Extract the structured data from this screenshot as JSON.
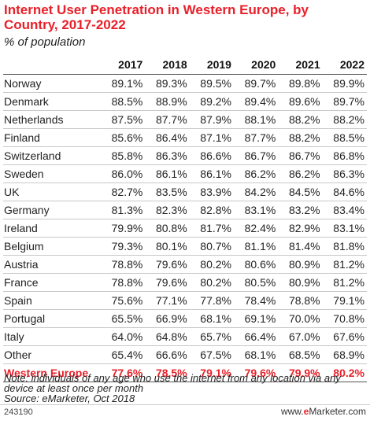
{
  "chart_data": {
    "type": "table",
    "title": "Internet User Penetration in Western Europe, by Country, 2017-2022",
    "subtitle": "% of population",
    "columns": [
      "2017",
      "2018",
      "2019",
      "2020",
      "2021",
      "2022"
    ],
    "rows": [
      {
        "name": "Norway",
        "values": [
          "89.1%",
          "89.3%",
          "89.5%",
          "89.7%",
          "89.8%",
          "89.9%"
        ]
      },
      {
        "name": "Denmark",
        "values": [
          "88.5%",
          "88.9%",
          "89.2%",
          "89.4%",
          "89.6%",
          "89.7%"
        ]
      },
      {
        "name": "Netherlands",
        "values": [
          "87.5%",
          "87.7%",
          "87.9%",
          "88.1%",
          "88.2%",
          "88.2%"
        ]
      },
      {
        "name": "Finland",
        "values": [
          "85.6%",
          "86.4%",
          "87.1%",
          "87.7%",
          "88.2%",
          "88.5%"
        ]
      },
      {
        "name": "Switzerland",
        "values": [
          "85.8%",
          "86.3%",
          "86.6%",
          "86.7%",
          "86.7%",
          "86.8%"
        ]
      },
      {
        "name": "Sweden",
        "values": [
          "86.0%",
          "86.1%",
          "86.1%",
          "86.2%",
          "86.2%",
          "86.3%"
        ]
      },
      {
        "name": "UK",
        "values": [
          "82.7%",
          "83.5%",
          "83.9%",
          "84.2%",
          "84.5%",
          "84.6%"
        ]
      },
      {
        "name": "Germany",
        "values": [
          "81.3%",
          "82.3%",
          "82.8%",
          "83.1%",
          "83.2%",
          "83.4%"
        ]
      },
      {
        "name": "Ireland",
        "values": [
          "79.9%",
          "80.8%",
          "81.7%",
          "82.4%",
          "82.9%",
          "83.1%"
        ]
      },
      {
        "name": "Belgium",
        "values": [
          "79.3%",
          "80.1%",
          "80.7%",
          "81.1%",
          "81.4%",
          "81.8%"
        ]
      },
      {
        "name": "Austria",
        "values": [
          "78.8%",
          "79.6%",
          "80.2%",
          "80.6%",
          "80.9%",
          "81.2%"
        ]
      },
      {
        "name": "France",
        "values": [
          "78.8%",
          "79.6%",
          "80.2%",
          "80.5%",
          "80.9%",
          "81.2%"
        ]
      },
      {
        "name": "Spain",
        "values": [
          "75.6%",
          "77.1%",
          "77.8%",
          "78.4%",
          "78.8%",
          "79.1%"
        ]
      },
      {
        "name": "Portugal",
        "values": [
          "65.5%",
          "66.9%",
          "68.1%",
          "69.1%",
          "70.0%",
          "70.8%"
        ]
      },
      {
        "name": "Italy",
        "values": [
          "64.0%",
          "64.8%",
          "65.7%",
          "66.4%",
          "67.0%",
          "67.6%"
        ]
      },
      {
        "name": "Other",
        "values": [
          "65.4%",
          "66.6%",
          "67.5%",
          "68.1%",
          "68.5%",
          "68.9%"
        ]
      }
    ],
    "total": {
      "name": "Western Europe",
      "values": [
        "77.6%",
        "78.5%",
        "79.1%",
        "79.6%",
        "79.9%",
        "80.2%"
      ]
    }
  },
  "note": "Note: individuals of any age who use the internet from any location via any device at least once per month",
  "source": "Source: eMarketer, Oct 2018",
  "footer": {
    "id": "243190",
    "brand_prefix": "www.",
    "brand_mark": "e",
    "brand_suffix": "Marketer.com"
  },
  "colors": {
    "accent": "#e8202a"
  }
}
